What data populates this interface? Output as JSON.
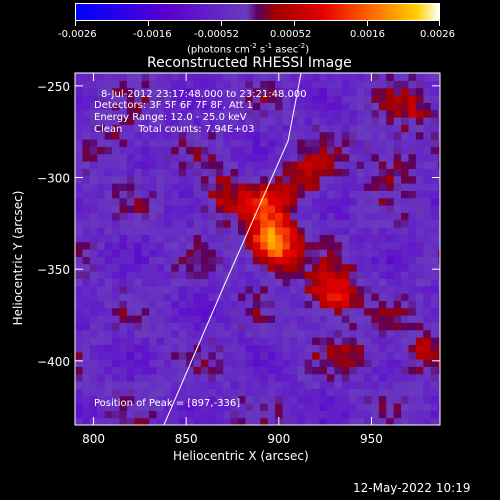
{
  "colorbar": {
    "ticks": [
      "-0.0026",
      "-0.0016",
      "-0.00052",
      "0.00052",
      "0.0016",
      "0.0026"
    ],
    "units_main": "(photons cm",
    "units_sup1": "-2",
    "units_mid1": " s",
    "units_sup2": "-1",
    "units_mid2": " asec",
    "units_sup3": "-2",
    "units_end": ")",
    "range": [
      -0.0026,
      0.0026
    ]
  },
  "chart_data": {
    "type": "heatmap",
    "title": "Reconstructed RHESSI Image",
    "xlabel": "Heliocentric X (arcsec)",
    "ylabel": "Heliocentric Y (arcsec)",
    "xlim": [
      790,
      987
    ],
    "ylim": [
      -435,
      -243
    ],
    "x_ticks": [
      800,
      850,
      900,
      950
    ],
    "y_ticks": [
      -250,
      -300,
      -350,
      -400
    ],
    "x_tick_labels": [
      "800",
      "850",
      "900",
      "950"
    ],
    "y_tick_labels": [
      "−250",
      "−300",
      "−350",
      "−400"
    ],
    "peaks": [
      {
        "x": 897,
        "y": -336,
        "intensity": 0.0026
      },
      {
        "x": 929,
        "y": -363,
        "intensity": 0.0018
      },
      {
        "x": 893,
        "y": -315,
        "intensity": 0.0012
      },
      {
        "x": 868,
        "y": -310,
        "intensity": 0.0009
      },
      {
        "x": 915,
        "y": -300,
        "intensity": 0.0009
      },
      {
        "x": 960,
        "y": -290,
        "intensity": 0.0008
      },
      {
        "x": 975,
        "y": -395,
        "intensity": 0.0008
      },
      {
        "x": 940,
        "y": -395,
        "intensity": 0.0006
      },
      {
        "x": 812,
        "y": -280,
        "intensity": 0.0006
      },
      {
        "x": 972,
        "y": -262,
        "intensity": 0.0007
      }
    ],
    "limb": [
      [
        838,
        -435
      ],
      [
        870,
        -360
      ],
      [
        905,
        -280
      ],
      [
        912,
        -243
      ]
    ],
    "annotations": {
      "line1": "8-Jul-2012 23:17:48.000 to 23:21:48.000",
      "line2": "Detectors: 3F 5F 6F 7F 8F, Att 1",
      "line3": "Energy Range: 12.0 - 25.0 keV",
      "line4": "Clean     Total counts: 7.94E+03",
      "peak": "Position of Peak = [897,-336]"
    }
  },
  "footer_date": "12-May-2022 10:19"
}
